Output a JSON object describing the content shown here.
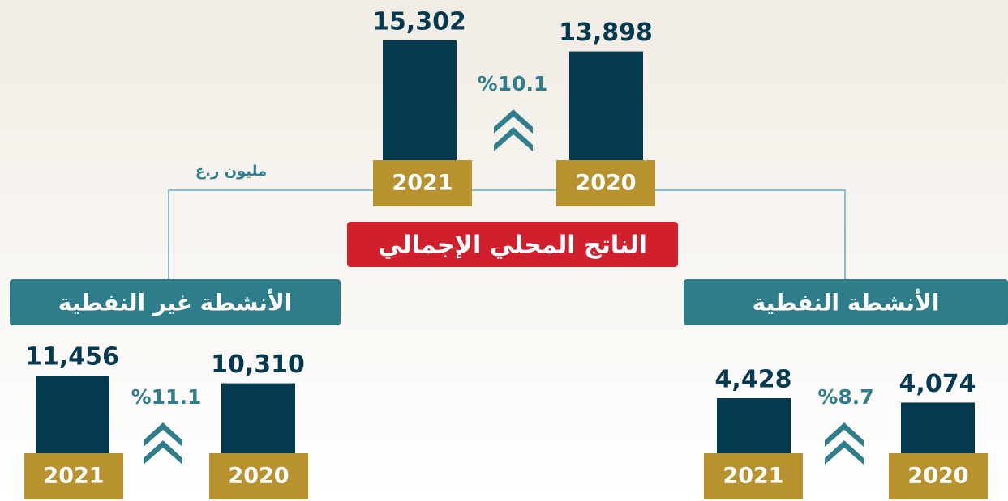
{
  "unit": "مليون ر.ع",
  "panels": [
    {
      "title": "الناتج المحلي الإجمالي",
      "change": "%10.1",
      "bars": [
        {
          "year": "2021",
          "value": 15302,
          "value_label": "15,302"
        },
        {
          "year": "2020",
          "value": 13898,
          "value_label": "13,898"
        }
      ]
    },
    {
      "title": "الأنشطة غير النفطية",
      "change": "%11.1",
      "bars": [
        {
          "year": "2021",
          "value": 11456,
          "value_label": "11,456"
        },
        {
          "year": "2020",
          "value": 10310,
          "value_label": "10,310"
        }
      ]
    },
    {
      "title": "الأنشطة النفطية",
      "change": "%8.7",
      "bars": [
        {
          "year": "2021",
          "value": 4428,
          "value_label": "4,428"
        },
        {
          "year": "2020",
          "value": 4074,
          "value_label": "4,074"
        }
      ]
    }
  ]
}
